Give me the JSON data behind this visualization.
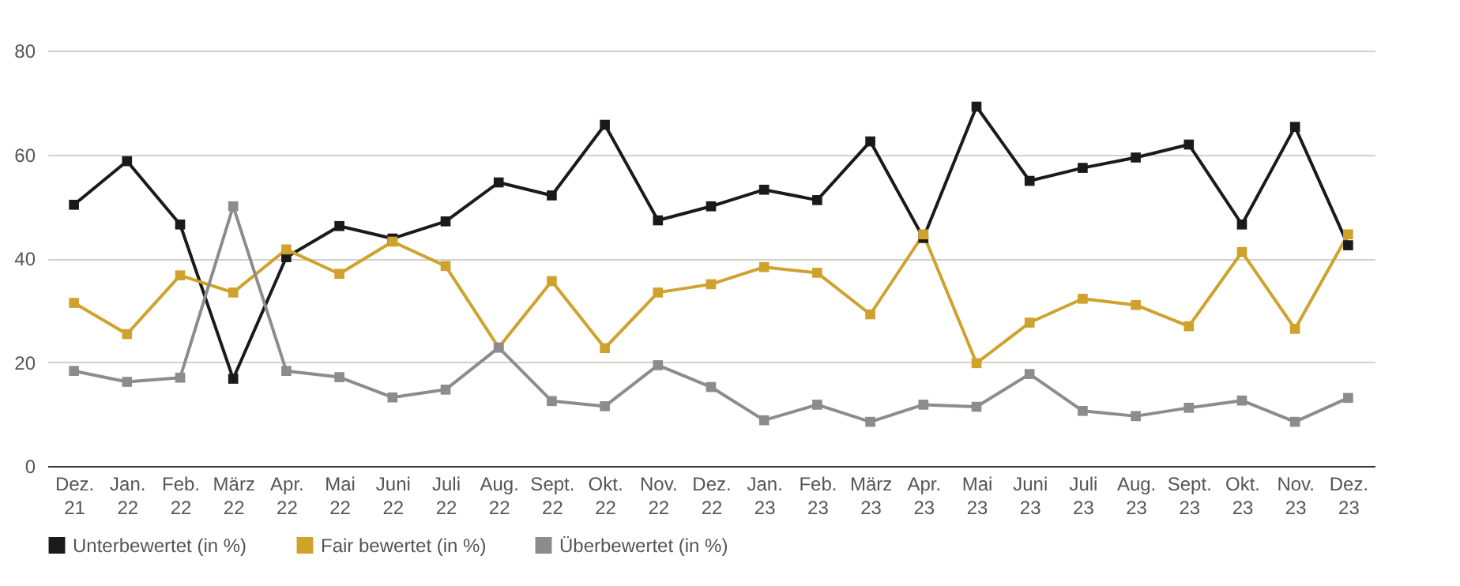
{
  "chart_data": {
    "type": "line",
    "categories": [
      "Dez. 21",
      "Jan. 22",
      "Feb. 22",
      "März 22",
      "Apr. 22",
      "Mai 22",
      "Juni 22",
      "Juli 22",
      "Aug. 22",
      "Sept. 22",
      "Okt. 22",
      "Nov. 22",
      "Dez. 22",
      "Jan. 23",
      "Feb. 23",
      "März 23",
      "Apr. 23",
      "Mai 23",
      "Juni 23",
      "Juli 23",
      "Aug. 23",
      "Sept. 23",
      "Okt. 23",
      "Nov. 23",
      "Dez. 23"
    ],
    "series": [
      {
        "name": "Unterbewertet (in %)",
        "color": "#1a1a1a",
        "values": [
          50.3,
          58.7,
          46.5,
          16.8,
          40.2,
          46.2,
          43.8,
          47.1,
          54.6,
          52.1,
          65.7,
          47.3,
          50,
          53.2,
          51.2,
          62.5,
          43.9,
          69.2,
          54.9,
          57.4,
          59.4,
          61.9,
          46.5,
          65.3,
          42.5
        ]
      },
      {
        "name": "Fair bewertet (in %)",
        "color": "#cfa22e",
        "values": [
          31.4,
          25.4,
          36.7,
          33.4,
          41.7,
          37,
          43.2,
          38.5,
          22.8,
          35.6,
          22.7,
          33.4,
          35,
          38.3,
          37.2,
          29.2,
          44.6,
          19.8,
          27.6,
          32.2,
          31,
          26.9,
          41.2,
          26.4,
          44.6
        ]
      },
      {
        "name": "Überbewertet (in %)",
        "color": "#8c8c8c",
        "values": [
          18.3,
          16.2,
          17,
          50,
          18.3,
          17.1,
          13.2,
          14.7,
          22.8,
          12.5,
          11.5,
          19.4,
          15.2,
          8.8,
          11.8,
          8.5,
          11.8,
          11.4,
          17.7,
          10.6,
          9.6,
          11.2,
          12.6,
          8.5,
          13.1
        ]
      }
    ],
    "ylim": [
      0,
      80
    ],
    "yticks": [
      0,
      20,
      40,
      60,
      80
    ],
    "grid": "y",
    "legend": "bottom",
    "marker": "square",
    "line_style": "solid"
  }
}
